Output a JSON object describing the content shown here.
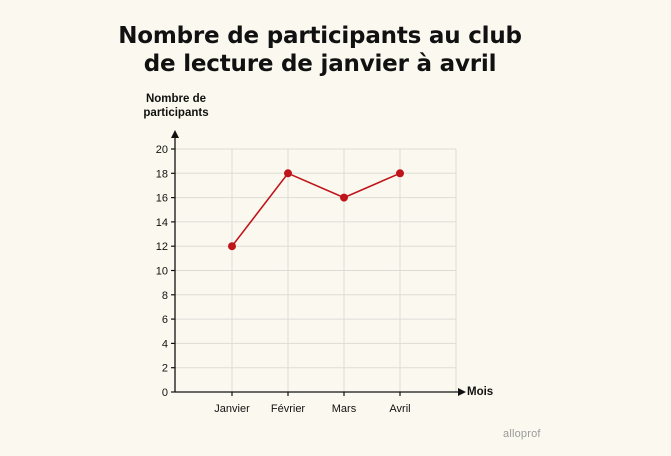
{
  "chart_data": {
    "type": "line",
    "title_line1": "Nombre de participants au club",
    "title_line2": "de lecture de janvier à avril",
    "xlabel": "Mois",
    "ylabel_line1": "Nombre de",
    "ylabel_line2": "participants",
    "categories": [
      "Janvier",
      "Février",
      "Mars",
      "Avril"
    ],
    "values": [
      12,
      18,
      16,
      18
    ],
    "ylim": [
      0,
      20
    ],
    "yticks": [
      0,
      2,
      4,
      6,
      8,
      10,
      12,
      14,
      16,
      18,
      20
    ],
    "grid": true,
    "line_color": "#c0141b"
  },
  "brand": {
    "logo_text": "alloprof"
  }
}
